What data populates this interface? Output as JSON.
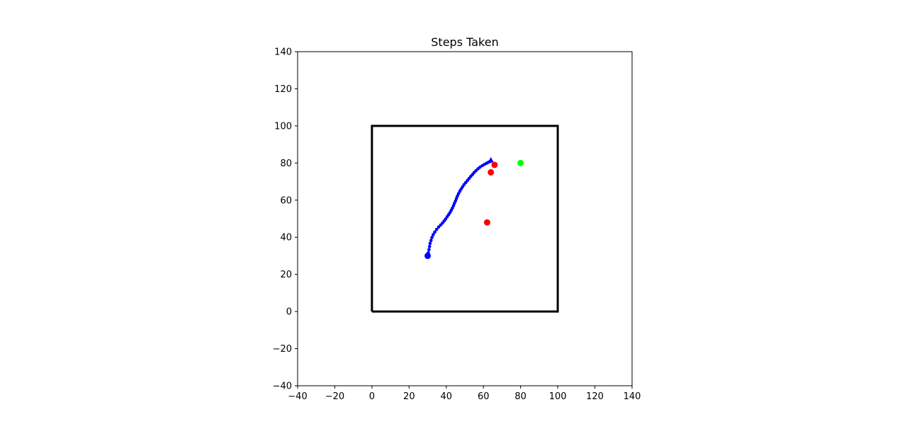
{
  "chart_data": {
    "type": "scatter",
    "title": "Steps Taken",
    "xlabel": "",
    "ylabel": "",
    "xlim": [
      -40,
      140
    ],
    "ylim": [
      -40,
      140
    ],
    "xticks": [
      -40,
      -20,
      0,
      20,
      40,
      60,
      80,
      100,
      120,
      140
    ],
    "yticks": [
      -40,
      -20,
      0,
      20,
      40,
      60,
      80,
      100,
      120,
      140
    ],
    "tick_labels_x": [
      "−40",
      "−20",
      "0",
      "20",
      "40",
      "60",
      "80",
      "100",
      "120",
      "140"
    ],
    "tick_labels_y": [
      "−40",
      "−20",
      "0",
      "20",
      "40",
      "60",
      "80",
      "100",
      "120",
      "140"
    ],
    "grid": false,
    "boundary": {
      "x": [
        0,
        100,
        100,
        0,
        0
      ],
      "y": [
        0,
        0,
        100,
        100,
        0
      ],
      "color": "#000000"
    },
    "series": [
      {
        "role": "path",
        "color": "#0000ff",
        "x": [
          30.0,
          30.3,
          30.7,
          31.0,
          31.3,
          31.8,
          32.3,
          33.0,
          33.8,
          34.8,
          35.9,
          37.0,
          38.0,
          38.9,
          39.7,
          40.5,
          41.3,
          42.0,
          42.7,
          43.3,
          43.9,
          44.4,
          45.0,
          45.5,
          46.0,
          46.6,
          47.3,
          48.0,
          48.8,
          49.6,
          50.5,
          51.4,
          52.3,
          53.2,
          54.1,
          55.0,
          56.0,
          57.1,
          58.2,
          59.4,
          60.6,
          61.7,
          62.7,
          63.5,
          64.0
        ],
        "y": [
          30.0,
          31.6,
          33.3,
          35.0,
          36.7,
          38.3,
          39.9,
          41.4,
          42.8,
          44.2,
          45.5,
          46.6,
          47.7,
          48.8,
          49.9,
          51.1,
          52.2,
          53.3,
          54.5,
          55.7,
          57.0,
          58.3,
          59.6,
          60.9,
          62.2,
          63.5,
          64.8,
          66.0,
          67.2,
          68.4,
          69.5,
          70.6,
          71.7,
          72.8,
          73.8,
          74.9,
          75.9,
          76.9,
          77.8,
          78.6,
          79.3,
          79.9,
          80.4,
          80.8,
          81.0
        ]
      },
      {
        "role": "start",
        "color": "#0000ff",
        "x": [
          30.0
        ],
        "y": [
          30.0
        ]
      },
      {
        "role": "end",
        "color": "#0000ff",
        "x": [
          64.0
        ],
        "y": [
          81.5
        ]
      },
      {
        "role": "obstacles",
        "color": "#ff0000",
        "x": [
          66.0,
          64.0,
          62.0
        ],
        "y": [
          79.0,
          75.0,
          48.0
        ]
      },
      {
        "role": "goal",
        "color": "#00ff00",
        "x": [
          80.0
        ],
        "y": [
          80.0
        ]
      }
    ]
  }
}
